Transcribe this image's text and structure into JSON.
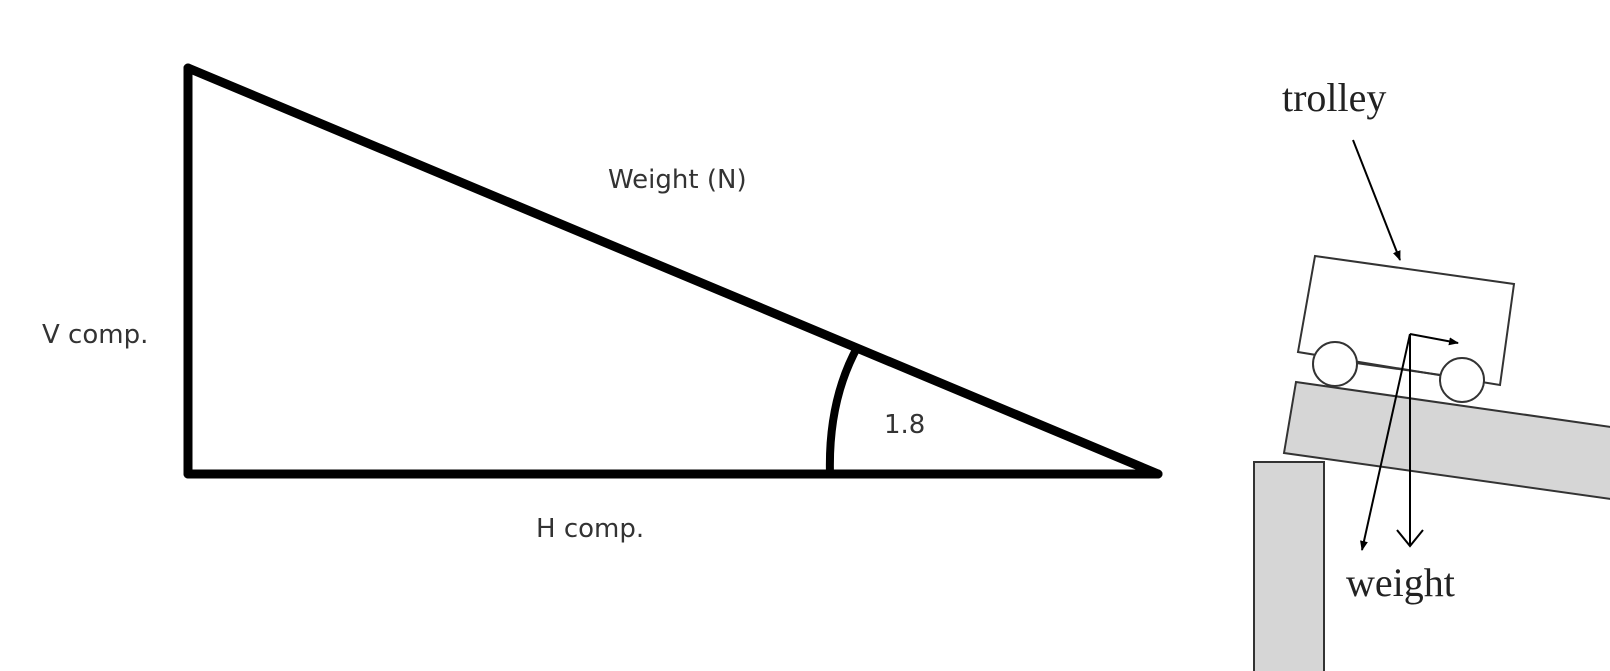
{
  "triangle": {
    "hypotenuse_label": "Weight (N)",
    "vertical_label": "V comp.",
    "horizontal_label": "H comp.",
    "angle_label": "1.8"
  },
  "trolley_figure": {
    "trolley_label": "trolley",
    "weight_label": "weight"
  },
  "colors": {
    "line": "#000000",
    "ramp_fill": "#d6d6d6",
    "text": "#333333"
  }
}
